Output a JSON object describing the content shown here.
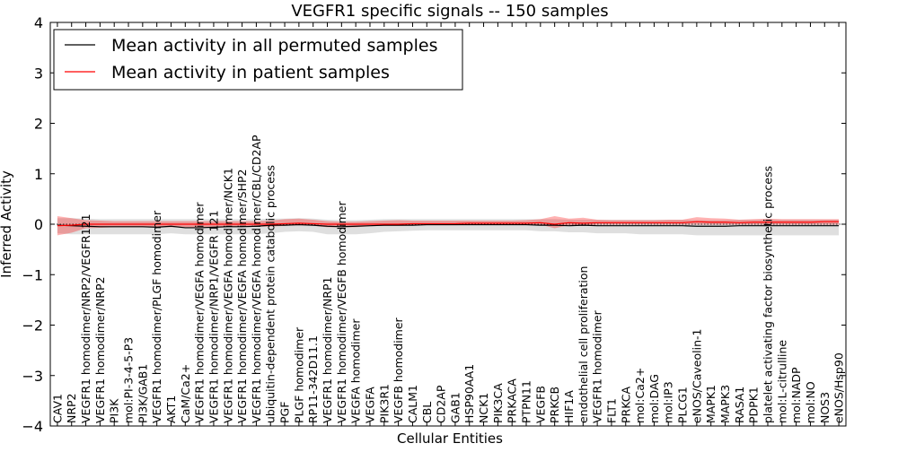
{
  "chart_data": {
    "type": "line",
    "title": "VEGFR1 specific signals -- 150 samples",
    "xlabel": "Cellular Entities",
    "ylabel": "Inferred Activity",
    "ylim": [
      -4,
      4
    ],
    "yticks": [
      -4,
      -3,
      -2,
      -1,
      0,
      1,
      2,
      3,
      4
    ],
    "ytick_labels": [
      "−4",
      "−3",
      "−2",
      "−1",
      "0",
      "1",
      "2",
      "3",
      "4"
    ],
    "legend_position": "top-left",
    "categories": [
      "CAV1",
      "NRP2",
      "VEGFR1 homodimer/NRP2/VEGFR121",
      "VEGFR1 homodimer/NRP2",
      "PI3K",
      "mol:PI-3-4-5-P3",
      "PI3K/GAB1",
      "VEGFR1 homodimer/PLGF homodimer",
      "AKT1",
      "CaM/Ca2+",
      "VEGFR1 homodimer/VEGFA homodimer",
      "VEGFR1 homodimer/NRP1/VEGFR 121",
      "VEGFR1 homodimer/VEGFA homodimer/NCK1",
      "VEGFR1 homodimer/VEGFA homodimer/SHP2",
      "VEGFR1 homodimer/VEGFA homodimer/CBL/CD2AP",
      "ubiquitin-dependent protein catabolic process",
      "PGF",
      "PLGF homodimer",
      "RP11-342D11.1",
      "VEGFR1 homodimer/NRP1",
      "VEGFR1 homodimer/VEGFB homodimer",
      "VEGFA homodimer",
      "VEGFA",
      "PIK3R1",
      "VEGFB homodimer",
      "CALM1",
      "CBL",
      "CD2AP",
      "GAB1",
      "HSP90AA1",
      "NCK1",
      "PIK3CA",
      "PRKACA",
      "PTPN11",
      "VEGFB",
      "PRKCB",
      "HIF1A",
      "endothelial cell proliferation",
      "VEGFR1 homodimer",
      "FLT1",
      "PRKCA",
      "mol:Ca2+",
      "mol:DAG",
      "mol:IP3",
      "PLCG1",
      "eNOS/Caveolin-1",
      "MAPK1",
      "MAPK3",
      "RASA1",
      "PDPK1",
      "platelet activating factor biosynthetic process",
      "mol:L-citrulline",
      "mol:NADP",
      "mol:NO",
      "NOS3",
      "eNOS/Hsp90"
    ],
    "series": [
      {
        "name": "Mean activity in all permuted samples",
        "color": "#000000",
        "values": [
          -0.02,
          -0.03,
          -0.04,
          -0.05,
          -0.05,
          -0.05,
          -0.05,
          -0.06,
          -0.04,
          -0.07,
          -0.07,
          -0.06,
          -0.05,
          -0.05,
          -0.04,
          -0.02,
          -0.02,
          -0.01,
          -0.02,
          -0.04,
          -0.05,
          -0.04,
          -0.03,
          -0.02,
          -0.02,
          -0.02,
          -0.01,
          -0.01,
          -0.01,
          -0.01,
          -0.01,
          -0.01,
          -0.01,
          -0.01,
          -0.02,
          -0.02,
          -0.03,
          -0.02,
          -0.03,
          -0.03,
          -0.03,
          -0.03,
          -0.03,
          -0.03,
          -0.03,
          -0.04,
          -0.04,
          -0.04,
          -0.03,
          -0.03,
          -0.03,
          -0.03,
          -0.03,
          -0.03,
          -0.03,
          -0.03
        ],
        "band_lower": [
          -0.18,
          -0.2,
          -0.2,
          -0.2,
          -0.2,
          -0.2,
          -0.2,
          -0.2,
          -0.18,
          -0.2,
          -0.2,
          -0.2,
          -0.2,
          -0.2,
          -0.2,
          -0.18,
          -0.15,
          -0.14,
          -0.15,
          -0.2,
          -0.2,
          -0.2,
          -0.18,
          -0.15,
          -0.14,
          -0.13,
          -0.12,
          -0.12,
          -0.12,
          -0.12,
          -0.12,
          -0.12,
          -0.12,
          -0.12,
          -0.14,
          -0.14,
          -0.16,
          -0.16,
          -0.18,
          -0.18,
          -0.18,
          -0.2,
          -0.2,
          -0.2,
          -0.2,
          -0.22,
          -0.22,
          -0.22,
          -0.22,
          -0.22,
          -0.22,
          -0.22,
          -0.22,
          -0.22,
          -0.22,
          -0.22
        ],
        "band_upper": [
          0.12,
          0.12,
          0.11,
          0.1,
          0.1,
          0.1,
          0.1,
          0.1,
          0.1,
          0.1,
          0.1,
          0.1,
          0.1,
          0.1,
          0.1,
          0.11,
          0.11,
          0.12,
          0.11,
          0.09,
          0.08,
          0.08,
          0.09,
          0.1,
          0.1,
          0.1,
          0.1,
          0.1,
          0.1,
          0.1,
          0.1,
          0.1,
          0.1,
          0.1,
          0.1,
          0.1,
          0.09,
          0.09,
          0.09,
          0.09,
          0.09,
          0.09,
          0.09,
          0.09,
          0.09,
          0.08,
          0.08,
          0.08,
          0.09,
          0.09,
          0.09,
          0.09,
          0.09,
          0.09,
          0.09,
          0.09
        ]
      },
      {
        "name": "Mean activity in patient samples",
        "color": "#ff0000",
        "values": [
          -0.03,
          -0.02,
          0.0,
          0.0,
          0.0,
          0.0,
          0.0,
          0.0,
          0.0,
          0.0,
          0.0,
          0.0,
          0.0,
          0.0,
          0.0,
          0.0,
          0.01,
          0.02,
          0.01,
          0.0,
          0.0,
          0.0,
          0.0,
          0.0,
          0.0,
          0.01,
          0.01,
          0.01,
          0.01,
          0.02,
          0.02,
          0.02,
          0.02,
          0.02,
          0.03,
          0.0,
          0.03,
          0.02,
          0.03,
          0.03,
          0.03,
          0.03,
          0.03,
          0.03,
          0.03,
          0.05,
          0.04,
          0.04,
          0.03,
          0.04,
          0.04,
          0.04,
          0.04,
          0.04,
          0.05,
          0.05
        ],
        "band_lower": [
          -0.22,
          -0.17,
          -0.08,
          -0.07,
          -0.06,
          -0.06,
          -0.06,
          -0.06,
          -0.06,
          -0.06,
          -0.06,
          -0.05,
          -0.05,
          -0.05,
          -0.05,
          -0.05,
          -0.03,
          -0.02,
          -0.03,
          -0.06,
          -0.06,
          -0.06,
          -0.04,
          -0.03,
          -0.03,
          -0.02,
          -0.02,
          -0.02,
          -0.02,
          -0.01,
          -0.01,
          -0.01,
          -0.01,
          -0.01,
          -0.01,
          -0.08,
          -0.02,
          -0.03,
          -0.01,
          -0.01,
          -0.01,
          -0.01,
          -0.01,
          -0.01,
          -0.01,
          -0.01,
          -0.01,
          -0.01,
          -0.01,
          -0.01,
          -0.01,
          -0.01,
          -0.01,
          -0.01,
          -0.01,
          -0.01
        ],
        "band_upper": [
          0.16,
          0.12,
          0.08,
          0.07,
          0.06,
          0.06,
          0.06,
          0.06,
          0.06,
          0.06,
          0.06,
          0.06,
          0.06,
          0.06,
          0.06,
          0.07,
          0.1,
          0.11,
          0.09,
          0.06,
          0.05,
          0.05,
          0.06,
          0.07,
          0.08,
          0.07,
          0.07,
          0.07,
          0.07,
          0.07,
          0.07,
          0.07,
          0.07,
          0.08,
          0.1,
          0.16,
          0.11,
          0.13,
          0.09,
          0.08,
          0.08,
          0.08,
          0.08,
          0.09,
          0.09,
          0.14,
          0.12,
          0.11,
          0.09,
          0.1,
          0.11,
          0.1,
          0.1,
          0.1,
          0.1,
          0.1
        ]
      }
    ]
  }
}
